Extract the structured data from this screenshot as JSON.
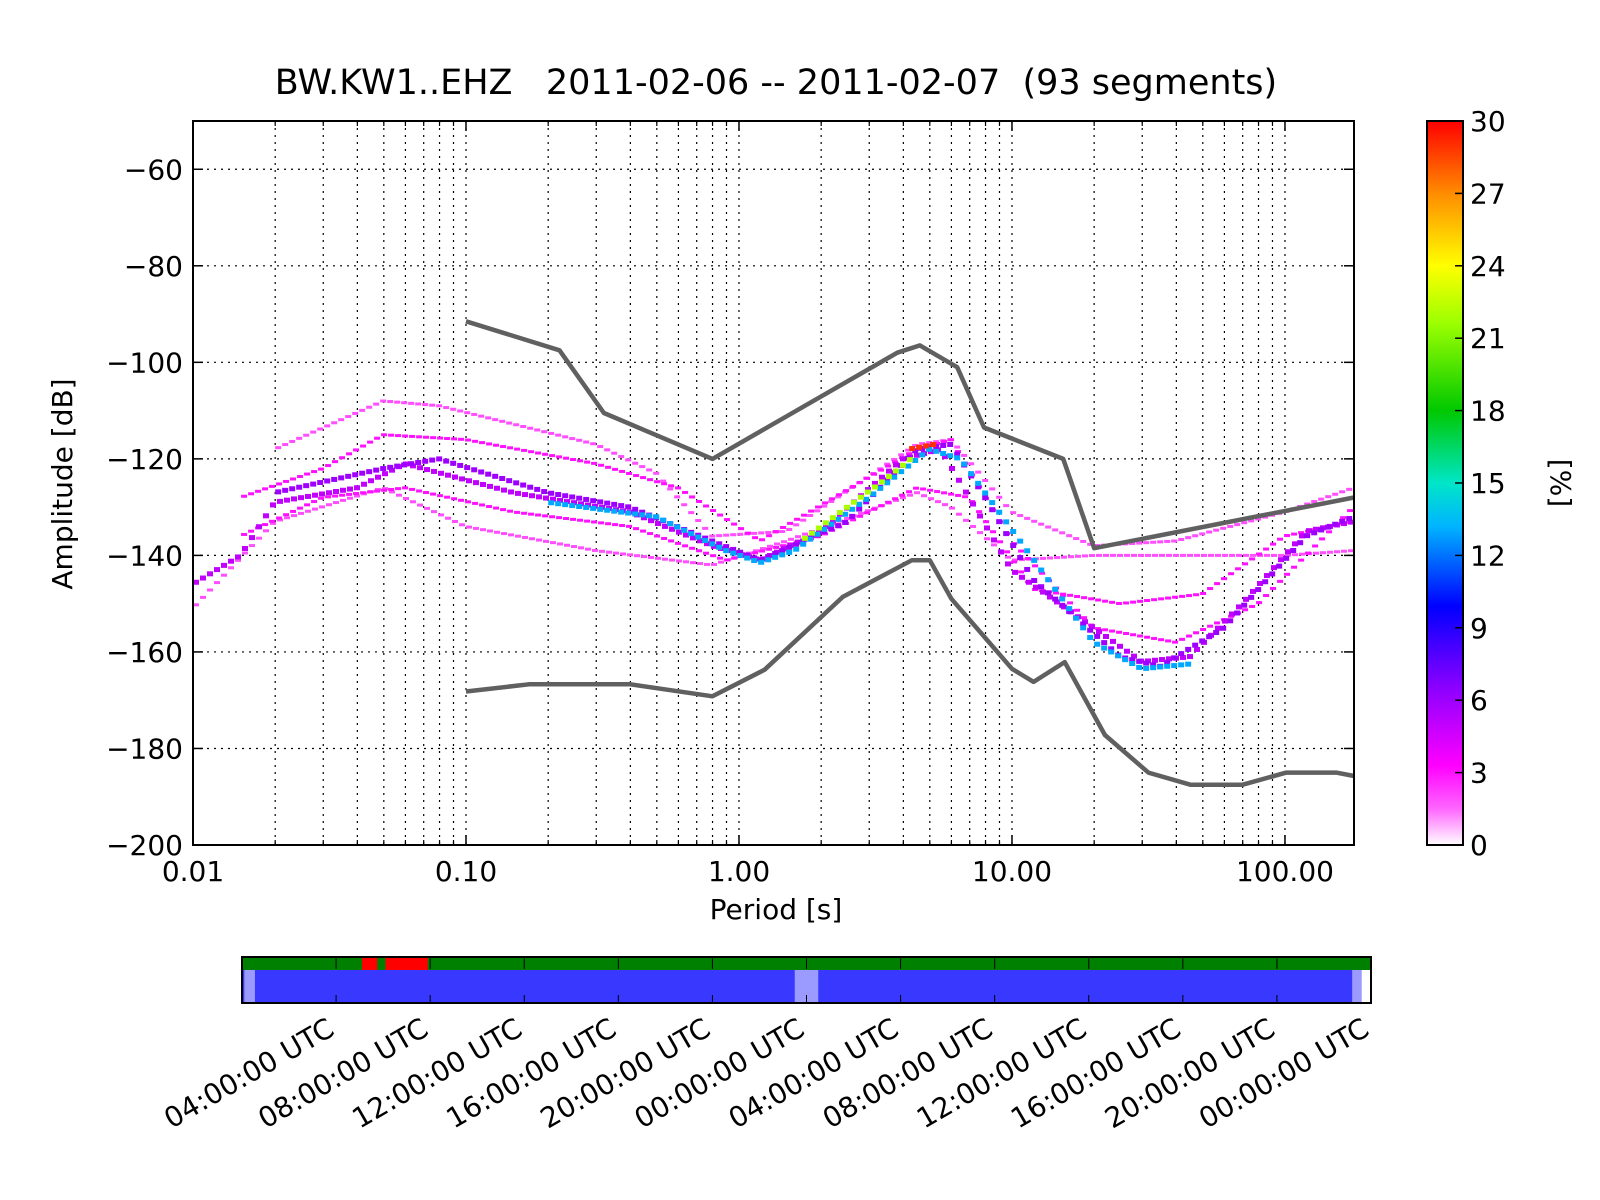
{
  "chart_data": [
    {
      "type": "heatmap",
      "title": "BW.KW1..EHZ   2011-02-06 -- 2011-02-07  (93 segments)",
      "xlabel": "Period [s]",
      "ylabel": "Amplitude [dB]",
      "x_scale": "log",
      "xlim": [
        0.01,
        179
      ],
      "ylim": [
        -200,
        -50
      ],
      "x_ticks": [
        0.01,
        0.1,
        1,
        10,
        100
      ],
      "x_tick_labels": [
        "0.01",
        "0.10",
        "1.00",
        "10.00",
        "100.00"
      ],
      "y_ticks": [
        -60,
        -80,
        -100,
        -120,
        -140,
        -160,
        -180,
        -200
      ],
      "y_tick_labels": [
        "−60",
        "−80",
        "−100",
        "−120",
        "−140",
        "−160",
        "−180",
        "−200"
      ],
      "grid": true,
      "colorbar": {
        "label": "[%]",
        "min": 0,
        "max": 30,
        "ticks": [
          "0",
          "3",
          "6",
          "9",
          "12",
          "15",
          "18",
          "21",
          "24",
          "27",
          "30"
        ],
        "colors": [
          "#ffffff",
          "#ff00ff",
          "#7800ff",
          "#0000ff",
          "#00c8ff",
          "#00c800",
          "#c8ff00",
          "#ff8c00",
          "#ff0000"
        ]
      },
      "series": [
        {
          "name": "",
          "role": "upper-noise-model",
          "color": "#606060",
          "points": [
            [
              0.1,
              -91.5
            ],
            [
              0.22,
              -97.5
            ],
            [
              0.32,
              -110.5
            ],
            [
              0.8,
              -120.0
            ],
            [
              3.8,
              -98.0
            ],
            [
              4.6,
              -96.5
            ],
            [
              6.3,
              -101.0
            ],
            [
              7.9,
              -113.5
            ],
            [
              15.4,
              -120.0
            ],
            [
              20,
              -138.5
            ],
            [
              179,
              -128.0
            ]
          ]
        },
        {
          "name": "",
          "role": "lower-noise-model",
          "color": "#606060",
          "points": [
            [
              0.1,
              -168.2
            ],
            [
              0.17,
              -166.7
            ],
            [
              0.4,
              -166.7
            ],
            [
              0.8,
              -169.2
            ],
            [
              1.24,
              -163.7
            ],
            [
              2.4,
              -148.6
            ],
            [
              4.3,
              -141.0
            ],
            [
              5.0,
              -141.0
            ],
            [
              6.0,
              -149.0
            ],
            [
              10,
              -163.5
            ],
            [
              12,
              -166.2
            ],
            [
              15.6,
              -162.1
            ],
            [
              21.9,
              -177.2
            ],
            [
              31.6,
              -185.0
            ],
            [
              45,
              -187.5
            ],
            [
              70,
              -187.5
            ],
            [
              101,
              -185.0
            ],
            [
              154,
              -185.0
            ],
            [
              179,
              -185.7
            ]
          ]
        }
      ],
      "density_bands": [
        {
          "level": 2,
          "points": [
            [
              0.01,
              -151
            ],
            [
              0.02,
              -133
            ],
            [
              0.05,
              -126
            ],
            [
              0.1,
              -134
            ],
            [
              0.3,
              -139
            ],
            [
              0.8,
              -142
            ],
            [
              1.5,
              -137
            ],
            [
              4.5,
              -127
            ],
            [
              6,
              -130
            ],
            [
              10,
              -141
            ],
            [
              20,
              -140
            ],
            [
              40,
              -140
            ],
            [
              100,
              -140
            ],
            [
              179,
              -139
            ]
          ]
        },
        {
          "level": 2,
          "points": [
            [
              0.02,
              -118
            ],
            [
              0.05,
              -108
            ],
            [
              0.08,
              -109
            ],
            [
              0.3,
              -117
            ],
            [
              0.5,
              -123
            ],
            [
              0.8,
              -136
            ],
            [
              1.5,
              -135
            ],
            [
              4.5,
              -117
            ],
            [
              6,
              -116
            ],
            [
              10,
              -131
            ],
            [
              20,
              -138
            ],
            [
              40,
              -137
            ],
            [
              100,
              -131
            ],
            [
              179,
              -126
            ]
          ]
        },
        {
          "level": 3,
          "points": [
            [
              0.015,
              -136
            ],
            [
              0.03,
              -128
            ],
            [
              0.06,
              -126
            ],
            [
              0.15,
              -131
            ],
            [
              0.4,
              -134
            ],
            [
              0.9,
              -141
            ],
            [
              2,
              -136
            ],
            [
              4.5,
              -126
            ],
            [
              7,
              -128
            ],
            [
              12,
              -147
            ],
            [
              25,
              -150
            ],
            [
              50,
              -148
            ],
            [
              100,
              -136
            ],
            [
              179,
              -133
            ]
          ]
        },
        {
          "level": 3,
          "points": [
            [
              0.015,
              -128
            ],
            [
              0.03,
              -122
            ],
            [
              0.05,
              -115
            ],
            [
              0.1,
              -116
            ],
            [
              0.3,
              -121
            ],
            [
              0.6,
              -126
            ],
            [
              1.2,
              -137
            ],
            [
              4.5,
              -118
            ],
            [
              6,
              -116
            ],
            [
              10,
              -137
            ],
            [
              20,
              -155
            ],
            [
              40,
              -158
            ],
            [
              80,
              -150
            ],
            [
              179,
              -130
            ]
          ]
        },
        {
          "level": 5,
          "points": [
            [
              0.01,
              -146
            ],
            [
              0.015,
              -140
            ],
            [
              0.02,
              -129
            ],
            [
              0.04,
              -126
            ],
            [
              0.06,
              -121
            ],
            [
              0.15,
              -127
            ],
            [
              0.4,
              -131
            ],
            [
              0.8,
              -138
            ],
            [
              1.2,
              -141
            ],
            [
              2,
              -135
            ],
            [
              4,
              -120
            ],
            [
              5.5,
              -118
            ],
            [
              7,
              -128
            ],
            [
              10,
              -143
            ],
            [
              20,
              -155
            ],
            [
              30,
              -162
            ],
            [
              45,
              -161
            ],
            [
              70,
              -150
            ],
            [
              120,
              -135
            ],
            [
              179,
              -133
            ]
          ]
        },
        {
          "level": 6,
          "points": [
            [
              0.02,
              -127
            ],
            [
              0.05,
              -122
            ],
            [
              0.08,
              -120
            ],
            [
              0.2,
              -127
            ],
            [
              0.4,
              -130
            ],
            [
              0.8,
              -137
            ],
            [
              1.2,
              -141
            ],
            [
              2.5,
              -133
            ],
            [
              4.5,
              -118
            ],
            [
              6,
              -117
            ],
            [
              8,
              -128
            ],
            [
              12,
              -145
            ],
            [
              25,
              -161
            ],
            [
              35,
              -163
            ],
            [
              60,
              -155
            ],
            [
              120,
              -136
            ],
            [
              179,
              -132
            ]
          ]
        },
        {
          "level": 13,
          "points": [
            [
              0.2,
              -129
            ],
            [
              0.5,
              -132
            ],
            [
              0.9,
              -139
            ],
            [
              1.2,
              -141.5
            ],
            [
              1.6,
              -139
            ],
            [
              3,
              -128
            ],
            [
              5,
              -118
            ],
            [
              6.5,
              -120
            ],
            [
              20,
              -158
            ],
            [
              30,
              -163.5
            ],
            [
              45,
              -162.5
            ]
          ]
        },
        {
          "level": 22,
          "points": [
            [
              1.7,
              -137
            ],
            [
              2.5,
              -130
            ],
            [
              3.5,
              -124
            ],
            [
              4.5,
              -119
            ]
          ]
        },
        {
          "level": 29,
          "points": [
            [
              4.2,
              -118
            ],
            [
              5.2,
              -117
            ]
          ]
        }
      ]
    },
    {
      "type": "timeline",
      "x_tick_labels": [
        "04:00:00 UTC",
        "08:00:00 UTC",
        "12:00:00 UTC",
        "16:00:00 UTC",
        "20:00:00 UTC",
        "00:00:00 UTC",
        "04:00:00 UTC",
        "08:00:00 UTC",
        "12:00:00 UTC",
        "16:00:00 UTC",
        "20:00:00 UTC",
        "00:00:00 UTC"
      ],
      "x_tick_hours": [
        4,
        8,
        12,
        16,
        20,
        24,
        28,
        32,
        36,
        40,
        44,
        48
      ],
      "xlim_hours": [
        0,
        48
      ],
      "availability_color": "#008000",
      "gap_color": "#ff0000",
      "segments_color": "#3838ff",
      "overlap_color": "#9a9aff",
      "gaps_hours": [
        [
          5.1,
          5.75
        ],
        [
          6.1,
          7.9
        ]
      ],
      "overlap_hours": [
        [
          0.1,
          0.55
        ],
        [
          23.5,
          24.5
        ],
        [
          47.2,
          47.6
        ]
      ],
      "segments_end_hour": 47.6
    }
  ]
}
